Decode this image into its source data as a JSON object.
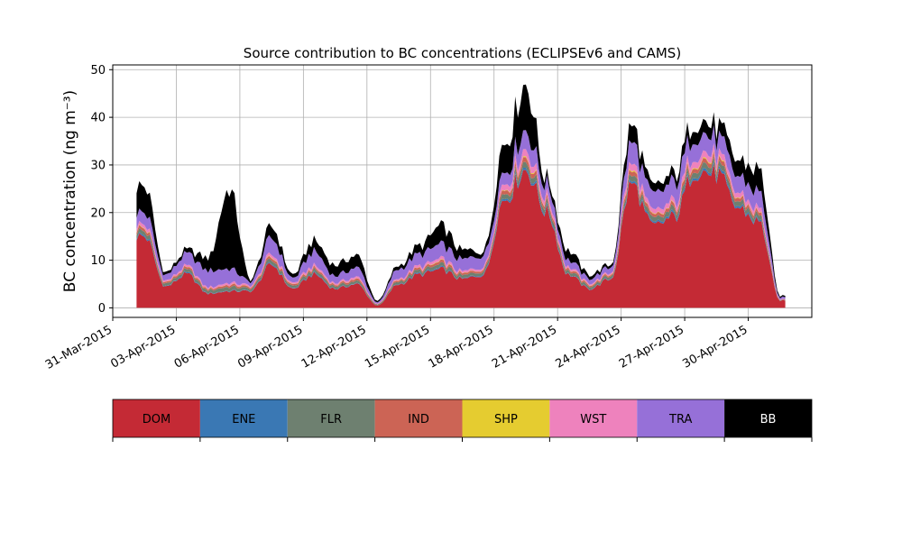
{
  "chart_data": {
    "type": "area",
    "stacked": true,
    "title": "Source contribution to BC concentrations (ECLIPSEv6 and CAMS)",
    "ylabel": "BC concentration (ng m⁻³)",
    "xlabel": "",
    "ylim": [
      -2,
      51
    ],
    "xlim": [
      "2015-03-31",
      "2015-05-03"
    ],
    "yticks": [
      0,
      10,
      20,
      30,
      40,
      50
    ],
    "xticks": [
      "31-Mar-2015",
      "03-Apr-2015",
      "06-Apr-2015",
      "09-Apr-2015",
      "12-Apr-2015",
      "15-Apr-2015",
      "18-Apr-2015",
      "21-Apr-2015",
      "24-Apr-2015",
      "27-Apr-2015",
      "30-Apr-2015"
    ],
    "grid": true,
    "legend": "below",
    "x": [
      "2015-04-01",
      "2015-04-02",
      "2015-04-03",
      "2015-04-04",
      "2015-04-05",
      "2015-04-06",
      "2015-04-07",
      "2015-04-08",
      "2015-04-09",
      "2015-04-10",
      "2015-04-11",
      "2015-04-12",
      "2015-04-13",
      "2015-04-14",
      "2015-04-15",
      "2015-04-16",
      "2015-04-17",
      "2015-04-18",
      "2015-04-19",
      "2015-04-20",
      "2015-04-21",
      "2015-04-22",
      "2015-04-23",
      "2015-04-24",
      "2015-04-25",
      "2015-04-26",
      "2015-04-27",
      "2015-04-28",
      "2015-04-29",
      "2015-04-30",
      "2015-05-01"
    ],
    "total": [
      25.5,
      7.5,
      12,
      10.5,
      25,
      6,
      17,
      7,
      15,
      9,
      11,
      1.5,
      9,
      13,
      17,
      12,
      12,
      35,
      47,
      27,
      12,
      7,
      9,
      38,
      25,
      28,
      40,
      38,
      31,
      29,
      2.5
    ],
    "series": [
      {
        "name": "DOM",
        "color": "#c42a35",
        "values": [
          15,
          4.5,
          7,
          3,
          3.5,
          3.5,
          9,
          4,
          7,
          4,
          5,
          0.5,
          5,
          7,
          8,
          6,
          7,
          23,
          29,
          20,
          7,
          4,
          6,
          26,
          17,
          19,
          29,
          28,
          21,
          18,
          1.5
        ]
      },
      {
        "name": "ENE",
        "color": "#3a78b4",
        "values": [
          0.3,
          0.1,
          0.2,
          0.1,
          0.1,
          0.1,
          0.2,
          0.1,
          0.2,
          0.1,
          0.1,
          0,
          0.1,
          0.2,
          0.2,
          0.1,
          0.2,
          0.4,
          0.5,
          0.4,
          0.1,
          0.1,
          0.1,
          0.4,
          0.3,
          0.4,
          0.5,
          0.5,
          0.4,
          0.3,
          0
        ]
      },
      {
        "name": "FLR",
        "color": "#6e8070",
        "values": [
          0.8,
          0.5,
          0.6,
          0.6,
          0.8,
          0.5,
          0.7,
          0.5,
          0.6,
          0.5,
          0.5,
          0.2,
          0.5,
          0.6,
          0.7,
          0.6,
          0.6,
          1,
          1.2,
          1,
          0.6,
          0.5,
          0.5,
          1.1,
          0.9,
          1,
          1.2,
          1.1,
          1,
          0.9,
          0.1
        ]
      },
      {
        "name": "IND",
        "color": "#cc6455",
        "values": [
          0.6,
          0.3,
          0.4,
          0.3,
          0.4,
          0.3,
          0.5,
          0.3,
          0.4,
          0.3,
          0.4,
          0.1,
          0.3,
          0.4,
          0.5,
          0.4,
          0.4,
          0.8,
          1,
          0.7,
          0.4,
          0.3,
          0.3,
          0.9,
          0.6,
          0.7,
          0.9,
          0.9,
          0.7,
          0.6,
          0.1
        ]
      },
      {
        "name": "SHP",
        "color": "#e5cc30",
        "values": [
          0.1,
          0.05,
          0.05,
          0.05,
          0.05,
          0.05,
          0.1,
          0.05,
          0.05,
          0.05,
          0.05,
          0,
          0.05,
          0.05,
          0.1,
          0.05,
          0.05,
          0.1,
          0.2,
          0.1,
          0.05,
          0.05,
          0.05,
          0.2,
          0.1,
          0.1,
          0.2,
          0.2,
          0.1,
          0.1,
          0
        ]
      },
      {
        "name": "WST",
        "color": "#ee82bd",
        "values": [
          0.7,
          0.3,
          0.4,
          0.3,
          0.4,
          0.3,
          0.6,
          0.3,
          0.5,
          0.3,
          0.4,
          0.1,
          0.3,
          0.5,
          0.6,
          0.4,
          0.4,
          1.2,
          1.5,
          1,
          0.4,
          0.3,
          0.3,
          1.4,
          0.9,
          1,
          1.4,
          1.3,
          1,
          0.9,
          0.1
        ]
      },
      {
        "name": "TRA",
        "color": "#9670d8",
        "values": [
          2.5,
          1.2,
          2.5,
          3.5,
          3,
          0.8,
          3.5,
          1,
          3,
          1.5,
          2,
          0.3,
          2,
          2.5,
          3,
          2.5,
          2.5,
          2.5,
          4,
          2.5,
          1.5,
          1,
          1.2,
          4.5,
          3.5,
          4,
          4,
          3.5,
          3.5,
          3.5,
          0.4
        ]
      },
      {
        "name": "BB",
        "color": "#000000",
        "values": [
          5.5,
          0.55,
          0.85,
          2.65,
          16.75,
          0.45,
          2.4,
          0.75,
          2.25,
          2.25,
          2.55,
          0.3,
          0.75,
          1.75,
          3.9,
          1.95,
          0.85,
          6,
          9.6,
          1.3,
          1.95,
          0.75,
          0.55,
          3.5,
          1.7,
          1.8,
          2.8,
          2.5,
          3.3,
          4.7,
          0.3
        ]
      }
    ]
  }
}
